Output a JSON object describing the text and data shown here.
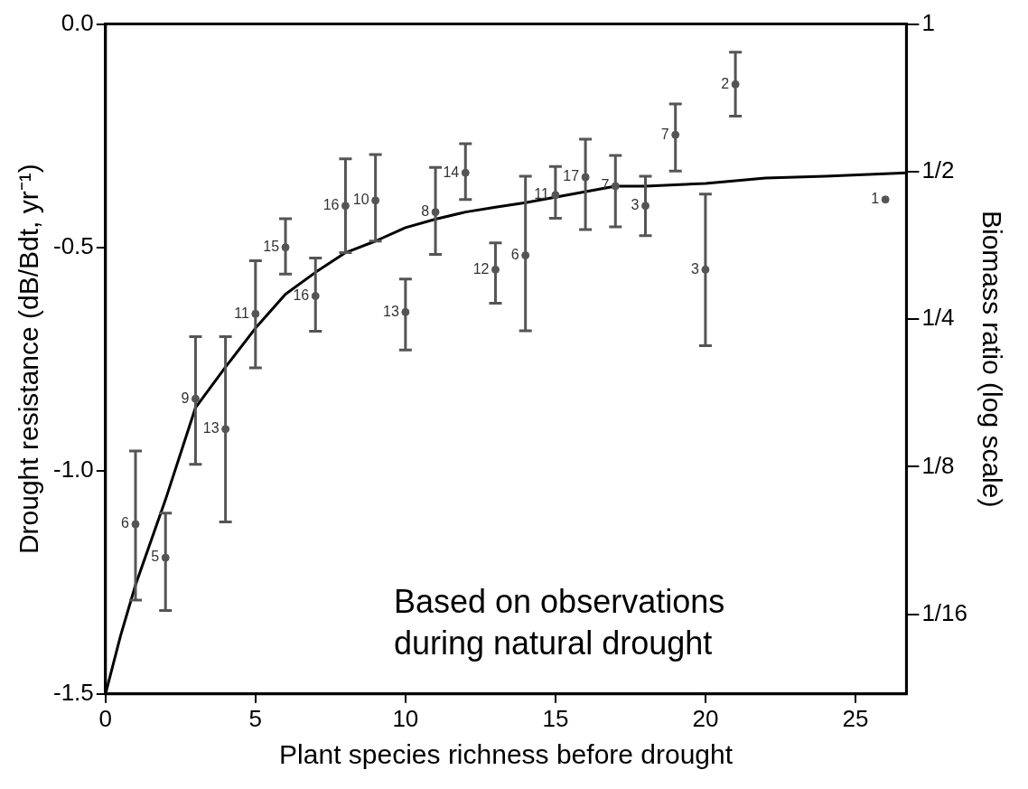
{
  "chart_data": {
    "type": "scatter",
    "xlabel": "Plant species richness before drought",
    "ylabel": "Drought resistance (dB/Bdt, yr⁻¹)",
    "y2label": "Biomass ratio (log scale)",
    "xlim": [
      0,
      26.7
    ],
    "xticks": [
      0,
      5,
      10,
      15,
      20,
      25
    ],
    "ylim": [
      -1.5,
      0
    ],
    "yticks": [
      {
        "value": 0,
        "label": "0.0"
      },
      {
        "value": -0.5,
        "label": "-0.5"
      },
      {
        "value": -1,
        "label": "-1.0"
      },
      {
        "value": -1.5,
        "label": "-1.5"
      }
    ],
    "y2lim": [
      0.043,
      1
    ],
    "y2ticks": [
      1,
      {
        "value": 0.5,
        "label": "1/2"
      },
      {
        "value": 0.25,
        "label": "1/4"
      },
      {
        "value": 0.125,
        "label": "1/8"
      },
      {
        "value": 0.0625,
        "label": "1/16"
      }
    ],
    "log": "y2",
    "grid": false,
    "legend": false,
    "annotations": [
      "Based on observations during natural drought",
      {
        "text": "6",
        "x": 1,
        "y": -1.12
      },
      {
        "text": "5",
        "x": 2,
        "y": -1.195
      },
      {
        "text": "9",
        "x": 3,
        "y": -0.839
      },
      {
        "text": "13",
        "x": 4,
        "y": -0.907
      },
      {
        "text": "11",
        "x": 5,
        "y": -0.649
      },
      {
        "text": "15",
        "x": 6,
        "y": -0.5
      },
      {
        "text": "16",
        "x": 7,
        "y": -0.609
      },
      {
        "text": "16",
        "x": 8,
        "y": -0.407
      },
      {
        "text": "10",
        "x": 9,
        "y": -0.395
      },
      {
        "text": "13",
        "x": 10,
        "y": -0.645
      },
      {
        "text": "8",
        "x": 11,
        "y": -0.421
      },
      {
        "text": "14",
        "x": 12,
        "y": -0.333
      },
      {
        "text": "12",
        "x": 13,
        "y": -0.55
      },
      {
        "text": "6",
        "x": 14,
        "y": -0.518
      },
      {
        "text": "11",
        "x": 15,
        "y": -0.383
      },
      {
        "text": "17",
        "x": 16,
        "y": -0.343
      },
      {
        "text": "7",
        "x": 17,
        "y": -0.363
      },
      {
        "text": "3",
        "x": 18,
        "y": -0.407
      },
      {
        "text": "7",
        "x": 19,
        "y": -0.248
      },
      {
        "text": "3",
        "x": 20,
        "y": -0.55
      },
      {
        "text": "2",
        "x": 21,
        "y": -0.135
      },
      {
        "text": "1",
        "x": 26,
        "y": -0.393
      }
    ],
    "series": [
      {
        "color": "#555555",
        "marker": "circle",
        "x": [
          1,
          2,
          3,
          4,
          5,
          6,
          7,
          8,
          9,
          10,
          11,
          12,
          13,
          14,
          15,
          16,
          17,
          18,
          19,
          20,
          21,
          26
        ],
        "values": [
          -1.12,
          -1.195,
          -0.839,
          -0.907,
          -0.649,
          -0.5,
          -0.609,
          -0.407,
          -0.395,
          -0.645,
          -0.421,
          -0.333,
          -0.55,
          -0.518,
          -0.383,
          -0.343,
          -0.363,
          -0.407,
          -0.248,
          -0.55,
          -0.135,
          -0.393
        ],
        "errors": [
          [
            -1.29,
            -0.956
          ],
          [
            -1.313,
            -1.095
          ],
          [
            -0.986,
            -0.7
          ],
          [
            -1.115,
            -0.7
          ],
          [
            -0.77,
            -0.53
          ],
          [
            -0.56,
            -0.436
          ],
          [
            -0.688,
            -0.524
          ],
          [
            -0.512,
            -0.302
          ],
          [
            -0.486,
            -0.292
          ],
          [
            -0.73,
            -0.571
          ],
          [
            -0.516,
            -0.321
          ],
          [
            -0.393,
            -0.268
          ],
          [
            -0.625,
            -0.49
          ],
          [
            -0.687,
            -0.341
          ],
          [
            -0.435,
            -0.319
          ],
          [
            -0.46,
            -0.258
          ],
          [
            -0.454,
            -0.294
          ],
          [
            -0.474,
            -0.341
          ],
          [
            -0.329,
            -0.179
          ],
          [
            -0.72,
            -0.381
          ],
          [
            -0.206,
            -0.063
          ],
          null
        ]
      },
      {
        "type": "line",
        "color": "#000000",
        "x": [
          0,
          0.5,
          1,
          2,
          3,
          4,
          5,
          6,
          7,
          8,
          9,
          10,
          11,
          12,
          13,
          14,
          17,
          18,
          20,
          22,
          24,
          26.7
        ],
        "values": [
          -1.5,
          -1.37,
          -1.256,
          -1.065,
          -0.859,
          -0.768,
          -0.681,
          -0.605,
          -0.556,
          -0.512,
          -0.486,
          -0.456,
          -0.437,
          -0.421,
          -0.41,
          -0.4,
          -0.363,
          -0.363,
          -0.357,
          -0.345,
          -0.341,
          -0.333
        ]
      }
    ]
  }
}
